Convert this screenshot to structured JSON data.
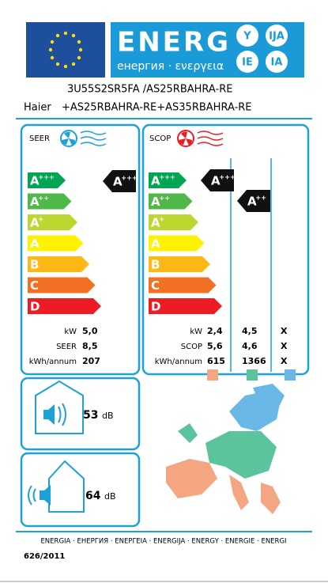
{
  "header": {
    "energy": "ENERG",
    "letters": [
      "Y",
      "IJA",
      "IE",
      "IA"
    ],
    "subtitle": "енергия · ενεργεια"
  },
  "supplier": "Haier",
  "model": [
    "3U55S2SR5FA /AS25RBAHRA-RE",
    "+AS25RBAHRA-RE+AS35RBAHRA-RE"
  ],
  "seer": {
    "label": "SEER",
    "classes": [
      {
        "letter": "A",
        "plus": "+++"
      },
      {
        "letter": "A",
        "plus": "++"
      },
      {
        "letter": "A",
        "plus": "+"
      },
      {
        "letter": "A",
        "plus": ""
      },
      {
        "letter": "B",
        "plus": ""
      },
      {
        "letter": "C",
        "plus": ""
      },
      {
        "letter": "D",
        "plus": ""
      }
    ],
    "rating": {
      "letter": "A",
      "plus": "+++"
    },
    "rows": [
      {
        "unit": "kW",
        "value": "5,0"
      },
      {
        "unit": "SEER",
        "value": "8,5"
      },
      {
        "unit": "kWh/annum",
        "value": "207"
      }
    ]
  },
  "scop": {
    "label": "SCOP",
    "classes": [
      {
        "letter": "A",
        "plus": "+++"
      },
      {
        "letter": "A",
        "plus": "++"
      },
      {
        "letter": "A",
        "plus": "+"
      },
      {
        "letter": "A",
        "plus": ""
      },
      {
        "letter": "B",
        "plus": ""
      },
      {
        "letter": "C",
        "plus": ""
      },
      {
        "letter": "D",
        "plus": ""
      }
    ],
    "ratings": [
      {
        "letter": "A",
        "plus": "+++"
      },
      {
        "letter": "A",
        "plus": "++"
      }
    ],
    "rows": [
      {
        "unit": "kW",
        "values": [
          "2,4",
          "4,5",
          "X"
        ]
      },
      {
        "unit": "SCOP",
        "values": [
          "5,6",
          "4,6",
          "X"
        ]
      },
      {
        "unit": "kWh/annum",
        "values": [
          "615",
          "1366",
          "X"
        ]
      }
    ]
  },
  "noise": {
    "indoor": {
      "value": "53",
      "unit": "dB"
    },
    "outdoor": {
      "value": "64",
      "unit": "dB"
    }
  },
  "footer": {
    "languages": "ENERGIA · ЕНЕРГИЯ · ΕΝΕΡΓΕΙΑ · ENERGIJA · ENERGY · ENERGIE · ENERGI",
    "regulation": "626/2011"
  }
}
